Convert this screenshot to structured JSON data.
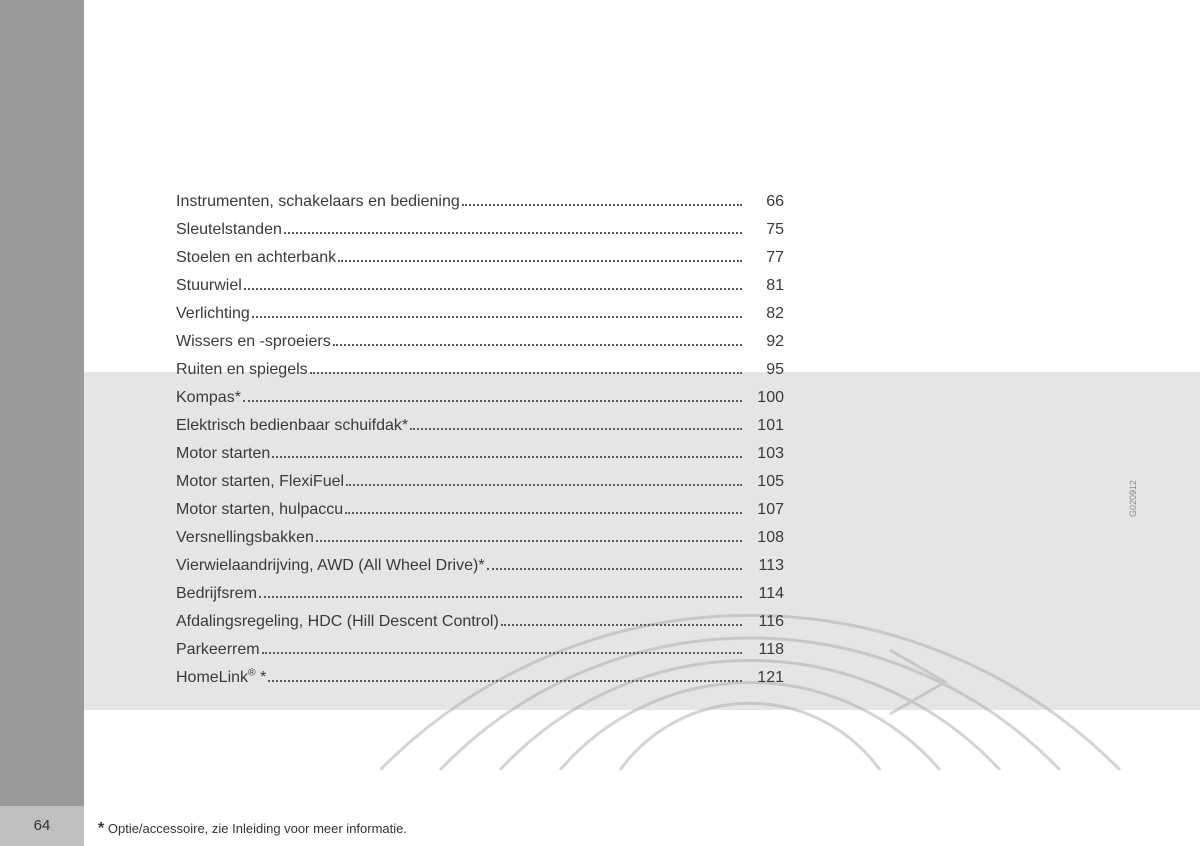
{
  "page_number": "64",
  "footnote_star": "*",
  "footnote_text": "Optie/accessoire, zie Inleiding voor meer informatie.",
  "side_code": "G020912",
  "toc": [
    {
      "label": "Instrumenten, schakelaars en bediening",
      "page": "66"
    },
    {
      "label": "Sleutelstanden",
      "page": "75"
    },
    {
      "label": "Stoelen en achterbank",
      "page": "77"
    },
    {
      "label": "Stuurwiel",
      "page": "81"
    },
    {
      "label": "Verlichting",
      "page": "82"
    },
    {
      "label": "Wissers en -sproeiers",
      "page": "92"
    },
    {
      "label": "Ruiten en spiegels",
      "page": "95"
    },
    {
      "label": "Kompas*",
      "page": "100"
    },
    {
      "label": "Elektrisch bedienbaar schuifdak*",
      "page": "101"
    },
    {
      "label": "Motor starten",
      "page": "103"
    },
    {
      "label": "Motor starten, FlexiFuel",
      "page": "105"
    },
    {
      "label": "Motor starten, hulpaccu",
      "page": "107"
    },
    {
      "label": "Versnellingsbakken",
      "page": "108"
    },
    {
      "label": "Vierwielaandrijving, AWD (All Wheel Drive)*",
      "page": "113"
    },
    {
      "label": "Bedrijfsrem",
      "page": "114"
    },
    {
      "label": "Afdalingsregeling, HDC (Hill Descent Control)",
      "page": "116"
    },
    {
      "label": "Parkeerrem",
      "page": "118"
    },
    {
      "label": "HomeLink",
      "suffix_sup": "®",
      "suffix": " *",
      "page": "121"
    }
  ],
  "style": {
    "left_bar_color": "#999999",
    "band_color": "#e5e5e5",
    "text_color": "#3a3a3a",
    "circle_stroke": "#aaaaaa",
    "page_bg": "#ffffff"
  }
}
